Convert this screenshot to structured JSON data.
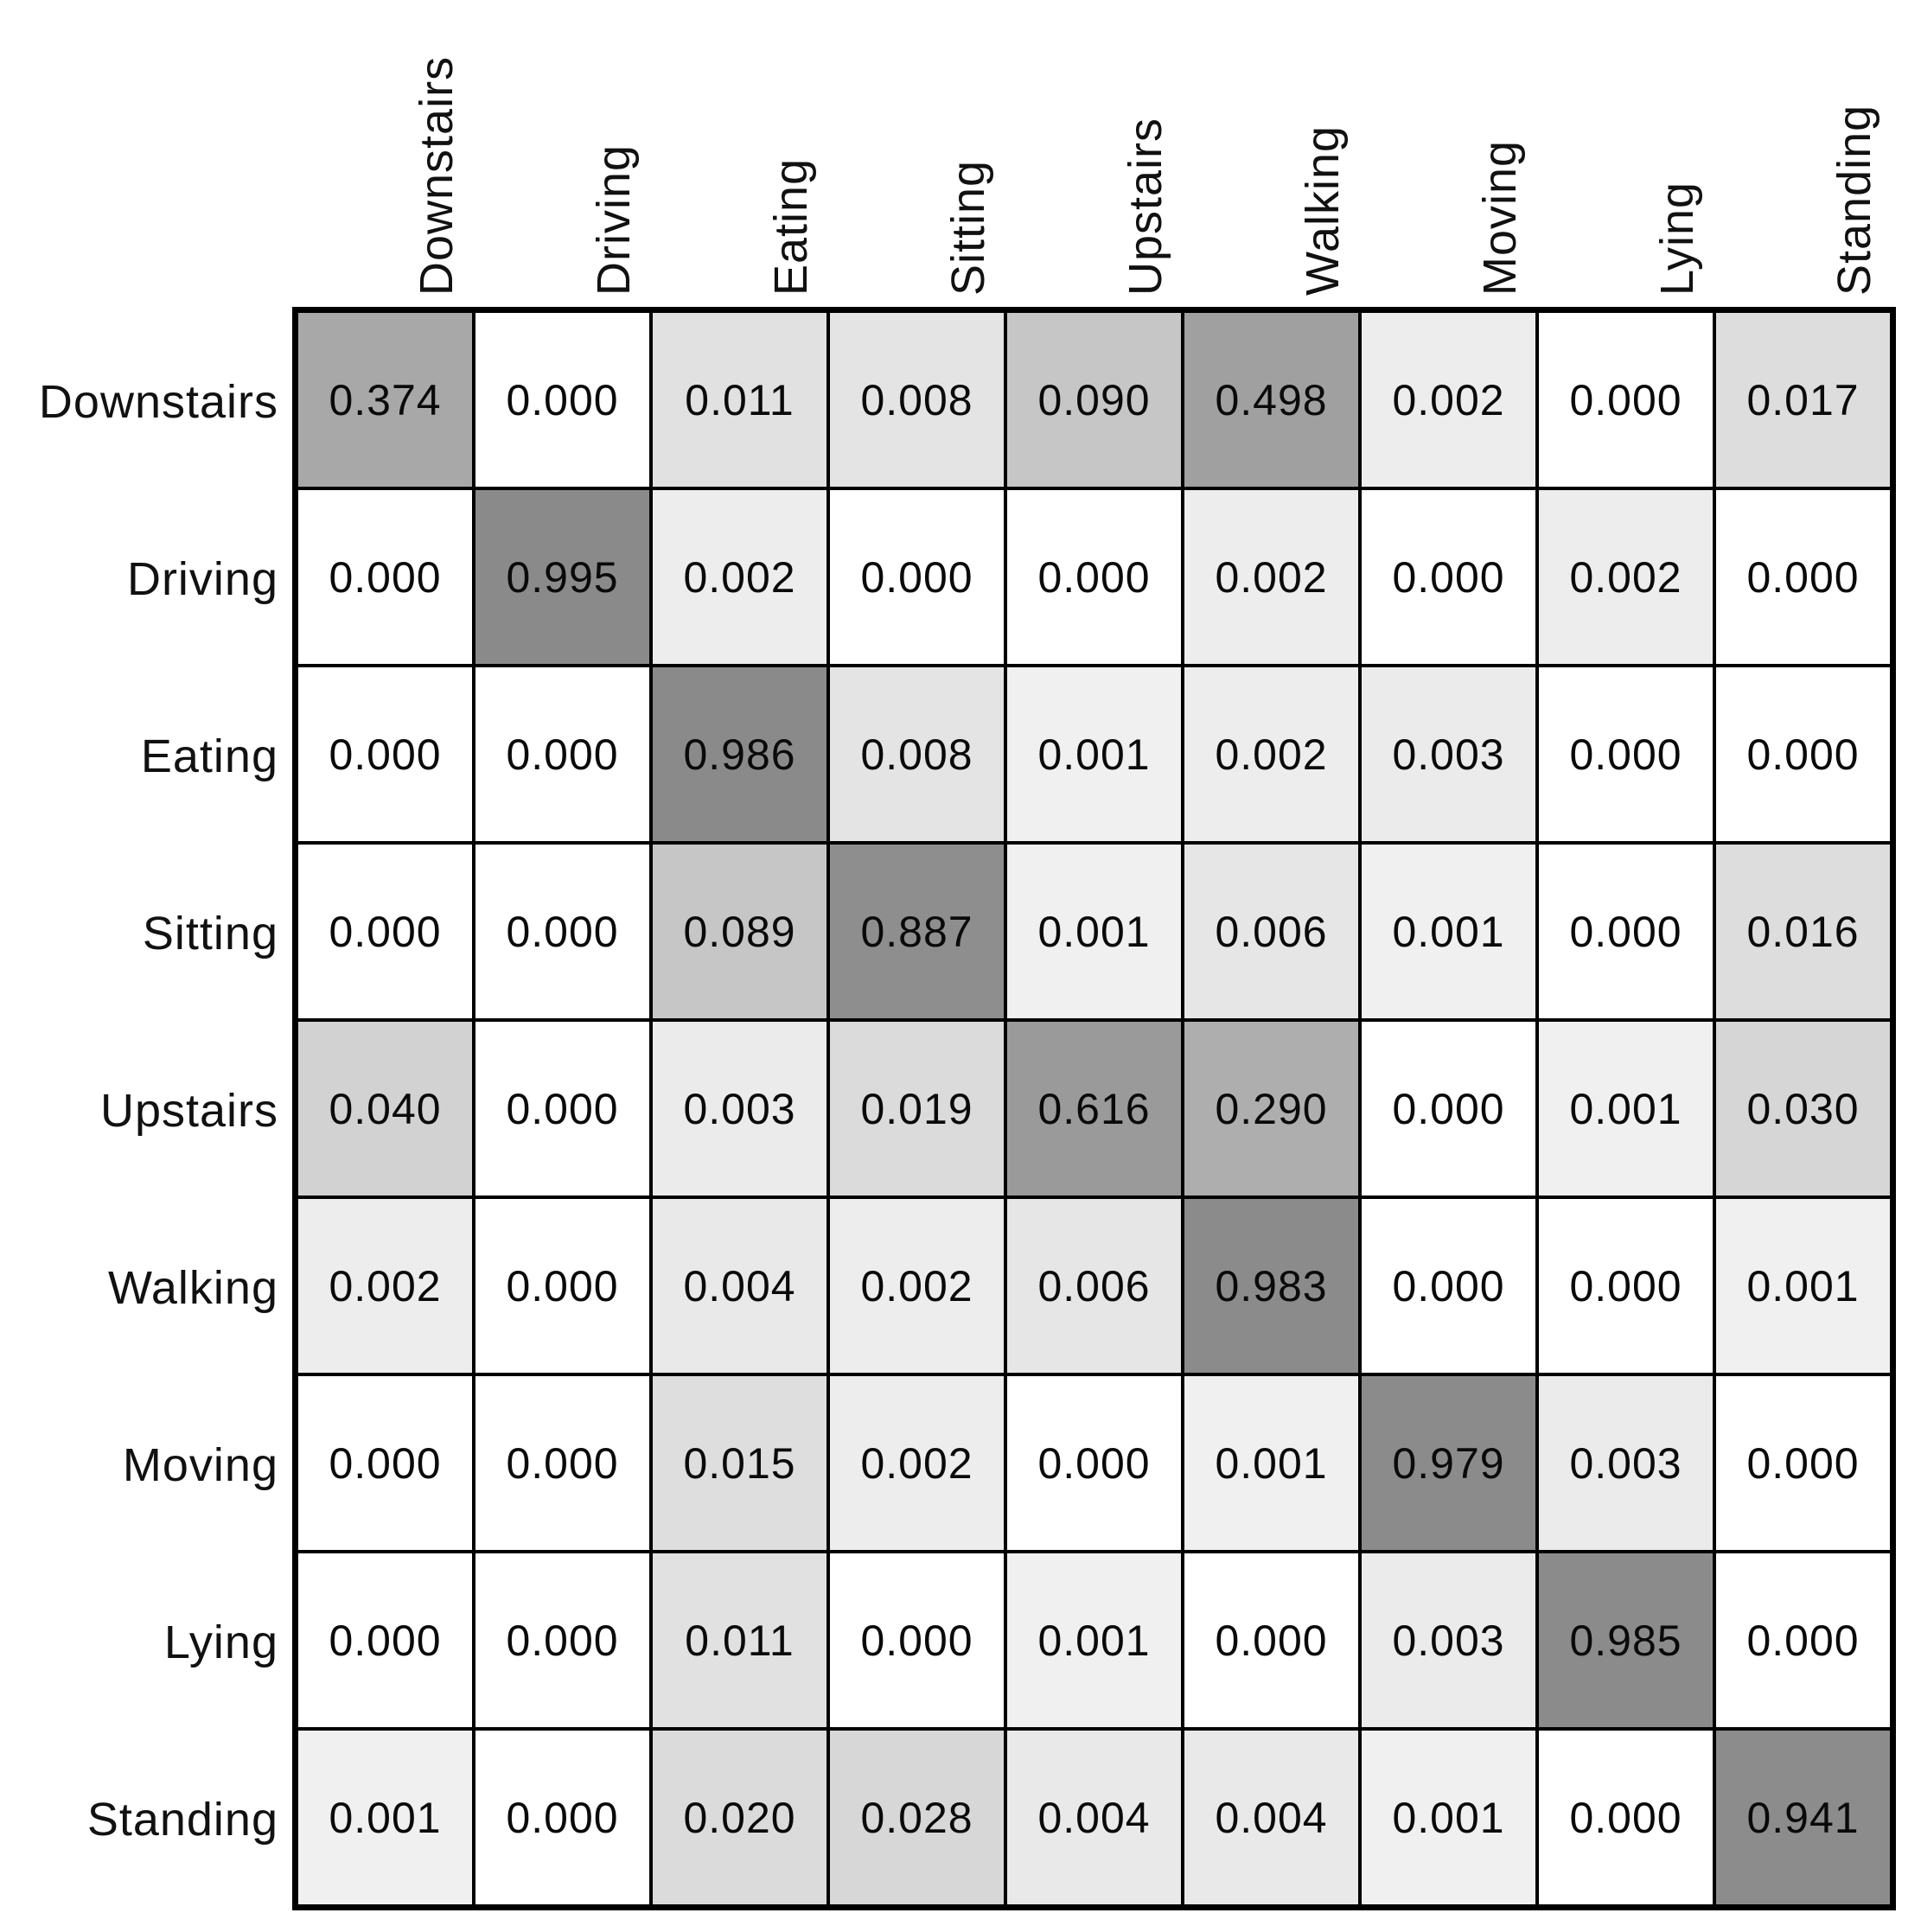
{
  "chart_data": {
    "type": "heatmap",
    "description": "confusion-matrix",
    "row_labels": [
      "Downstairs",
      "Driving",
      "Eating",
      "Sitting",
      "Upstairs",
      "Walking",
      "Moving",
      "Lying",
      "Standing"
    ],
    "col_labels": [
      "Downstairs",
      "Driving",
      "Eating",
      "Sitting",
      "Upstairs",
      "Walking",
      "Moving",
      "Lying",
      "Standing"
    ],
    "matrix": [
      [
        0.374,
        0.0,
        0.011,
        0.008,
        0.09,
        0.498,
        0.002,
        0.0,
        0.017
      ],
      [
        0.0,
        0.995,
        0.002,
        0.0,
        0.0,
        0.002,
        0.0,
        0.002,
        0.0
      ],
      [
        0.0,
        0.0,
        0.986,
        0.008,
        0.001,
        0.002,
        0.003,
        0.0,
        0.0
      ],
      [
        0.0,
        0.0,
        0.089,
        0.887,
        0.001,
        0.006,
        0.001,
        0.0,
        0.016
      ],
      [
        0.04,
        0.0,
        0.003,
        0.019,
        0.616,
        0.29,
        0.0,
        0.001,
        0.03
      ],
      [
        0.002,
        0.0,
        0.004,
        0.002,
        0.006,
        0.983,
        0.0,
        0.0,
        0.001
      ],
      [
        0.0,
        0.0,
        0.015,
        0.002,
        0.0,
        0.001,
        0.979,
        0.003,
        0.0
      ],
      [
        0.0,
        0.0,
        0.011,
        0.0,
        0.001,
        0.0,
        0.003,
        0.985,
        0.0
      ],
      [
        0.001,
        0.0,
        0.02,
        0.028,
        0.004,
        0.004,
        0.001,
        0.0,
        0.941
      ]
    ],
    "value_decimals": 3,
    "value_range": [
      0,
      1
    ],
    "colormap": {
      "zero_color": "#ffffff",
      "max_color": "#8a8a8a",
      "text_color": "#0a0a0a",
      "grid_line_color": "#000000",
      "scale": 117,
      "exponent": 0.3
    },
    "legend": "none",
    "grid": "on"
  }
}
